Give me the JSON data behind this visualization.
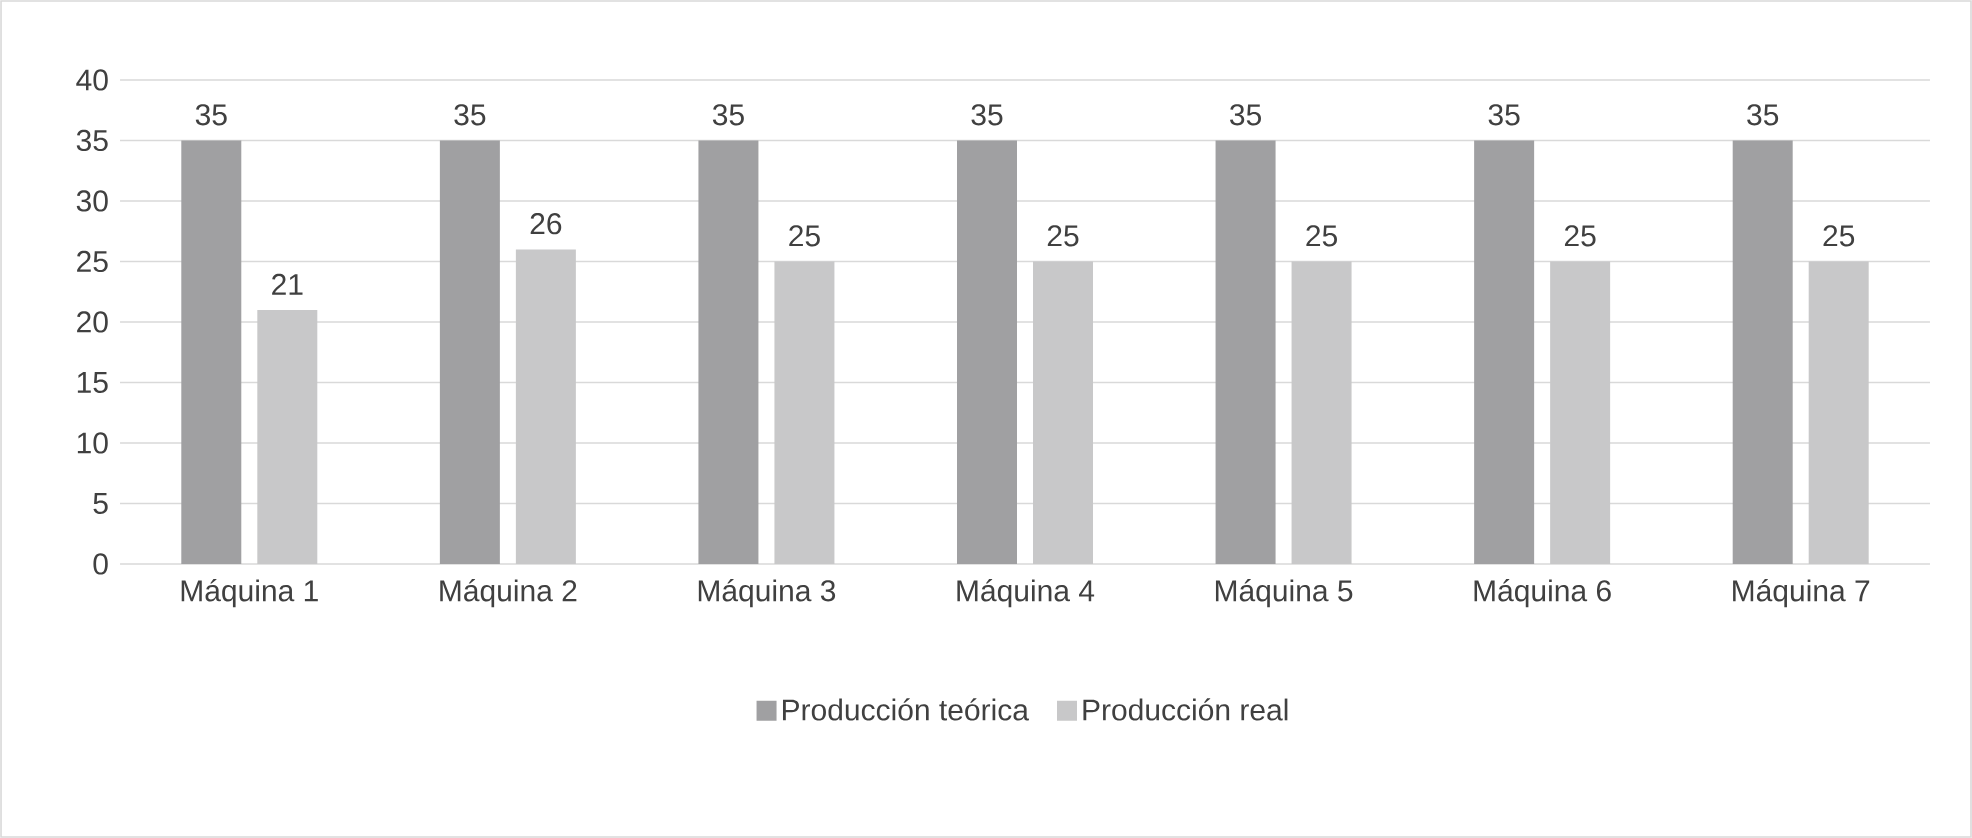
{
  "chart_data": {
    "type": "bar",
    "categories": [
      "Máquina 1",
      "Máquina 2",
      "Máquina 3",
      "Máquina 4",
      "Máquina 5",
      "Máquina 6",
      "Máquina 7"
    ],
    "series": [
      {
        "name": "Producción teórica",
        "color": "#a0a0a2",
        "values": [
          35,
          35,
          35,
          35,
          35,
          35,
          35
        ]
      },
      {
        "name": "Producción real",
        "color": "#c8c8c9",
        "values": [
          21,
          26,
          25,
          25,
          25,
          25,
          25
        ]
      }
    ],
    "ylim": [
      0,
      40
    ],
    "yticks": [
      0,
      5,
      10,
      15,
      20,
      25,
      30,
      35,
      40
    ],
    "grid": "y",
    "legend": "bottom",
    "data_labels": true
  }
}
